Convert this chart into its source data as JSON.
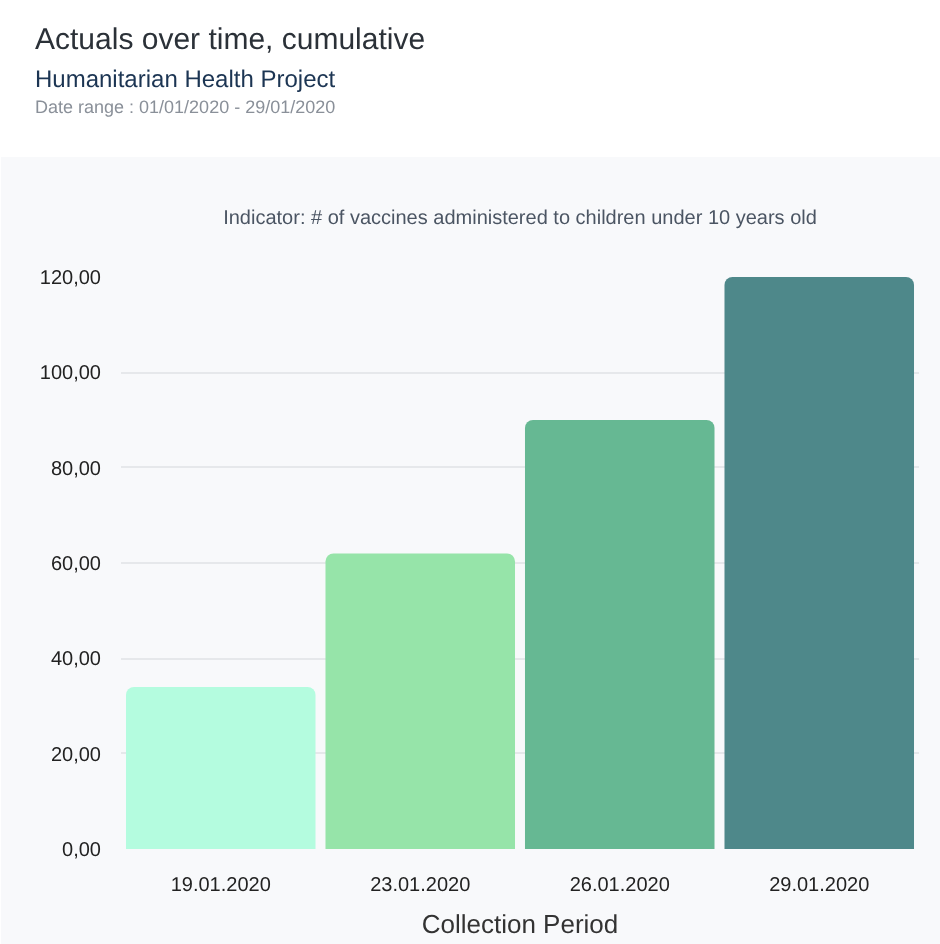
{
  "chart_data": {
    "type": "bar",
    "title": "Actuals over time, cumulative",
    "subtitle": "Humanitarian Health Project",
    "annotations": [
      "Date range : 01/01/2020 - 29/01/2020",
      "Indicator: # of vaccines administered to children under 10 years old"
    ],
    "categories": [
      "19.01.2020",
      "23.01.2020",
      "26.01.2020",
      "29.01.2020"
    ],
    "values": [
      34,
      62,
      90,
      120
    ],
    "colors": [
      "#b4fcdf",
      "#96e4a9",
      "#66b893",
      "#4e888a"
    ],
    "xlabel": "Collection Period",
    "ylim": [
      0,
      120
    ],
    "yticks": [
      {
        "value": 0,
        "label": "0,00"
      },
      {
        "value": 20,
        "label": "20,00"
      },
      {
        "value": 40,
        "label": "40,00"
      },
      {
        "value": 60,
        "label": "60,00"
      },
      {
        "value": 80,
        "label": "80,00"
      },
      {
        "value": 100,
        "label": "100,00"
      },
      {
        "value": 120,
        "label": "120,00"
      }
    ],
    "grid": "y"
  }
}
